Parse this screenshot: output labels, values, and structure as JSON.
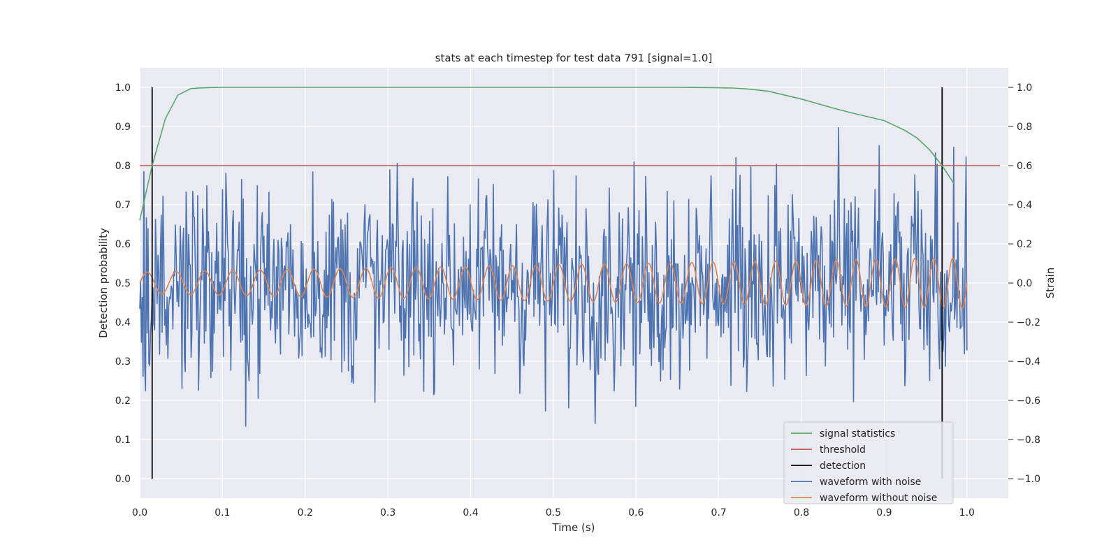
{
  "chart_data": {
    "type": "line",
    "title": "stats at each timestep for test data 791 [signal=1.0]",
    "xlabel": "Time (s)",
    "ylabel": "Detection probability",
    "y2label": "Strain",
    "xlim": [
      0.0,
      1.05
    ],
    "ylim": [
      -0.05,
      1.05
    ],
    "y2lim": [
      -1.1,
      1.1
    ],
    "xticks": [
      "0.0",
      "0.1",
      "0.2",
      "0.3",
      "0.4",
      "0.5",
      "0.6",
      "0.7",
      "0.8",
      "0.9",
      "1.0"
    ],
    "yticks": [
      "0.0",
      "0.1",
      "0.2",
      "0.3",
      "0.4",
      "0.5",
      "0.6",
      "0.7",
      "0.8",
      "0.9",
      "1.0"
    ],
    "y2ticks": [
      "−1.0",
      "−0.8",
      "−0.6",
      "−0.4",
      "−0.2",
      "0.0",
      "0.2",
      "0.4",
      "0.6",
      "0.8",
      "1.0"
    ],
    "grid": true,
    "legend_position": "lower-right",
    "series": [
      {
        "name": "signal statistics",
        "axis": "left",
        "color": "#55a868",
        "x": [
          0.0,
          0.015,
          0.031,
          0.046,
          0.062,
          0.078,
          0.1,
          0.2,
          0.3,
          0.4,
          0.5,
          0.6,
          0.65,
          0.7,
          0.72,
          0.74,
          0.76,
          0.78,
          0.8,
          0.82,
          0.84,
          0.86,
          0.88,
          0.9,
          0.91,
          0.925,
          0.94,
          0.955,
          0.97,
          0.984
        ],
        "y": [
          0.66,
          0.8,
          0.92,
          0.98,
          0.997,
          0.999,
          1.0,
          1.0,
          1.0,
          1.0,
          1.0,
          1.0,
          1.0,
          0.999,
          0.998,
          0.995,
          0.99,
          0.98,
          0.97,
          0.958,
          0.946,
          0.935,
          0.925,
          0.915,
          0.905,
          0.89,
          0.87,
          0.84,
          0.8,
          0.755
        ]
      },
      {
        "name": "threshold",
        "axis": "left",
        "color": "#c44e52",
        "x": [
          0.0,
          1.04
        ],
        "y": [
          0.8,
          0.8
        ]
      },
      {
        "name": "detection",
        "axis": "left",
        "color": "#000000",
        "x": [
          0.015,
          0.97
        ],
        "y": [
          1.0,
          1.0
        ],
        "style": "vlines",
        "ymin": 0.0
      },
      {
        "name": "waveform with noise",
        "axis": "right",
        "color": "#4c72b0",
        "generated": "noise",
        "n_points": 1000,
        "t_end": 1.0,
        "amplitude": 0.25,
        "min": -1.0,
        "max": 1.0
      },
      {
        "name": "waveform without noise",
        "axis": "right",
        "color": "#dd8452",
        "generated": "chirp",
        "n_points": 1000,
        "t_end": 1.0,
        "f0": 28,
        "f1": 44,
        "amp0": 0.055,
        "amp1": 0.13
      }
    ]
  }
}
